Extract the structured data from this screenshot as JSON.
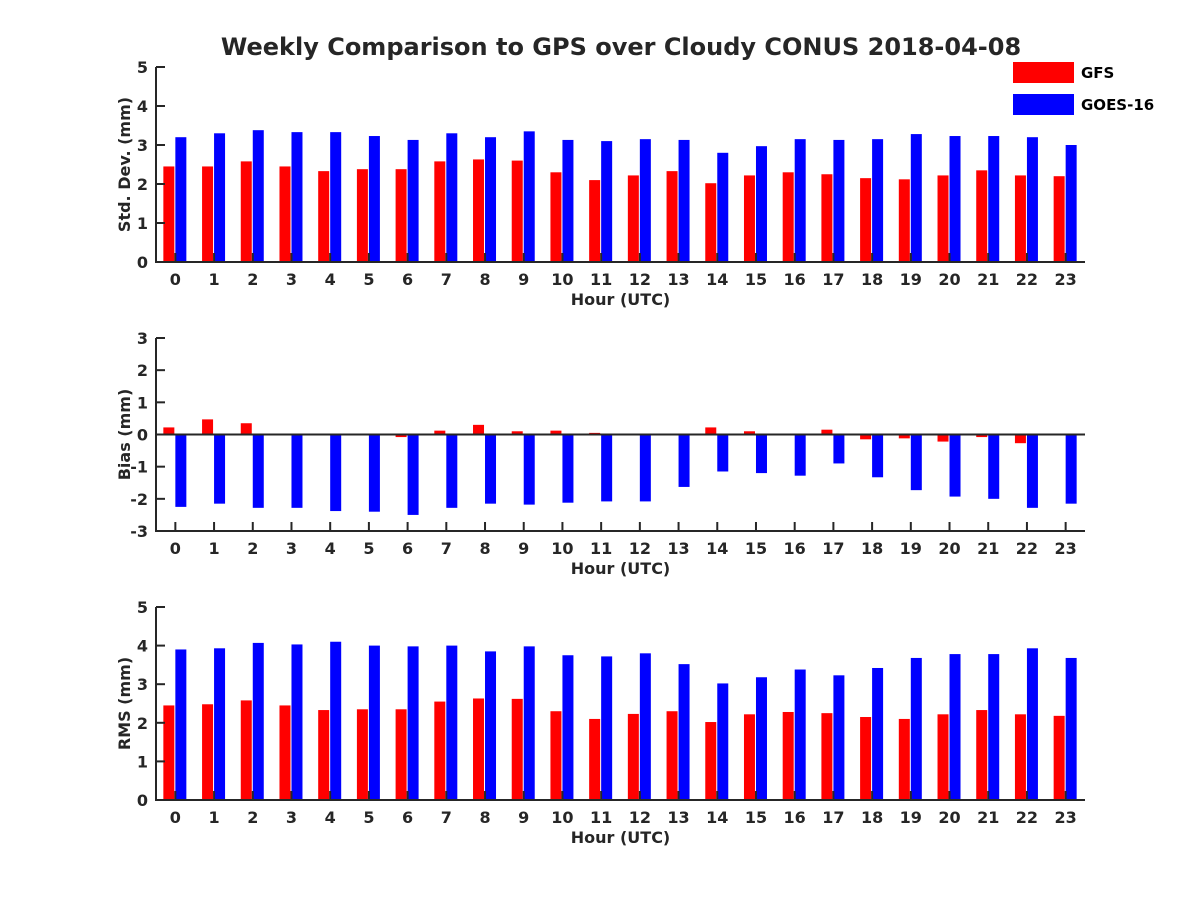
{
  "title": "Weekly Comparison to GPS over Cloudy CONUS 2018-04-08",
  "legend": [
    {
      "name": "GFS",
      "color": "#ff0000"
    },
    {
      "name": "GOES-16",
      "color": "#0000ff"
    }
  ],
  "chart_data": [
    {
      "type": "bar",
      "ylabel": "Std. Dev. (mm)",
      "xlabel": "Hour (UTC)",
      "categories": [
        "0",
        "1",
        "2",
        "3",
        "4",
        "5",
        "6",
        "7",
        "8",
        "9",
        "10",
        "11",
        "12",
        "13",
        "14",
        "15",
        "16",
        "17",
        "18",
        "19",
        "20",
        "21",
        "22",
        "23"
      ],
      "ylim": [
        0,
        5
      ],
      "yticks": [
        0,
        1,
        2,
        3,
        4,
        5
      ],
      "series": [
        {
          "name": "GFS",
          "color": "#ff0000",
          "values": [
            2.45,
            2.45,
            2.58,
            2.45,
            2.33,
            2.38,
            2.38,
            2.58,
            2.63,
            2.6,
            2.3,
            2.1,
            2.22,
            2.33,
            2.02,
            2.22,
            2.3,
            2.25,
            2.15,
            2.12,
            2.22,
            2.35,
            2.22,
            2.2
          ]
        },
        {
          "name": "GOES-16",
          "color": "#0000ff",
          "values": [
            3.2,
            3.3,
            3.38,
            3.33,
            3.33,
            3.23,
            3.13,
            3.3,
            3.2,
            3.35,
            3.13,
            3.1,
            3.15,
            3.13,
            2.8,
            2.97,
            3.15,
            3.13,
            3.15,
            3.28,
            3.23,
            3.23,
            3.2,
            3.0
          ]
        }
      ]
    },
    {
      "type": "bar",
      "ylabel": "Bias (mm)",
      "xlabel": "Hour (UTC)",
      "categories": [
        "0",
        "1",
        "2",
        "3",
        "4",
        "5",
        "6",
        "7",
        "8",
        "9",
        "10",
        "11",
        "12",
        "13",
        "14",
        "15",
        "16",
        "17",
        "18",
        "19",
        "20",
        "21",
        "22",
        "23"
      ],
      "ylim": [
        -3,
        3
      ],
      "yticks": [
        -3,
        -2,
        -1,
        0,
        1,
        2,
        3
      ],
      "series": [
        {
          "name": "GFS",
          "color": "#ff0000",
          "values": [
            0.22,
            0.47,
            0.35,
            0.03,
            0.0,
            0.0,
            -0.08,
            0.12,
            0.3,
            0.1,
            0.12,
            0.05,
            0.0,
            0.0,
            0.22,
            0.1,
            0.0,
            0.15,
            -0.15,
            -0.12,
            -0.22,
            -0.08,
            -0.27,
            0.0
          ]
        },
        {
          "name": "GOES-16",
          "color": "#0000ff",
          "values": [
            -2.25,
            -2.15,
            -2.28,
            -2.28,
            -2.38,
            -2.4,
            -2.5,
            -2.28,
            -2.15,
            -2.18,
            -2.12,
            -2.08,
            -2.08,
            -1.63,
            -1.15,
            -1.2,
            -1.28,
            -0.9,
            -1.33,
            -1.73,
            -1.93,
            -2.0,
            -2.28,
            -2.15
          ]
        }
      ]
    },
    {
      "type": "bar",
      "ylabel": "RMS (mm)",
      "xlabel": "Hour (UTC)",
      "categories": [
        "0",
        "1",
        "2",
        "3",
        "4",
        "5",
        "6",
        "7",
        "8",
        "9",
        "10",
        "11",
        "12",
        "13",
        "14",
        "15",
        "16",
        "17",
        "18",
        "19",
        "20",
        "21",
        "22",
        "23"
      ],
      "ylim": [
        0,
        5
      ],
      "yticks": [
        0,
        1,
        2,
        3,
        4,
        5
      ],
      "series": [
        {
          "name": "GFS",
          "color": "#ff0000",
          "values": [
            2.45,
            2.48,
            2.58,
            2.45,
            2.33,
            2.35,
            2.35,
            2.55,
            2.63,
            2.62,
            2.3,
            2.1,
            2.23,
            2.3,
            2.02,
            2.22,
            2.28,
            2.25,
            2.15,
            2.1,
            2.22,
            2.33,
            2.22,
            2.18
          ]
        },
        {
          "name": "GOES-16",
          "color": "#0000ff",
          "values": [
            3.9,
            3.93,
            4.07,
            4.03,
            4.1,
            4.0,
            3.98,
            4.0,
            3.85,
            3.98,
            3.75,
            3.72,
            3.8,
            3.52,
            3.02,
            3.18,
            3.38,
            3.23,
            3.42,
            3.68,
            3.78,
            3.78,
            3.93,
            3.68
          ]
        }
      ]
    }
  ]
}
